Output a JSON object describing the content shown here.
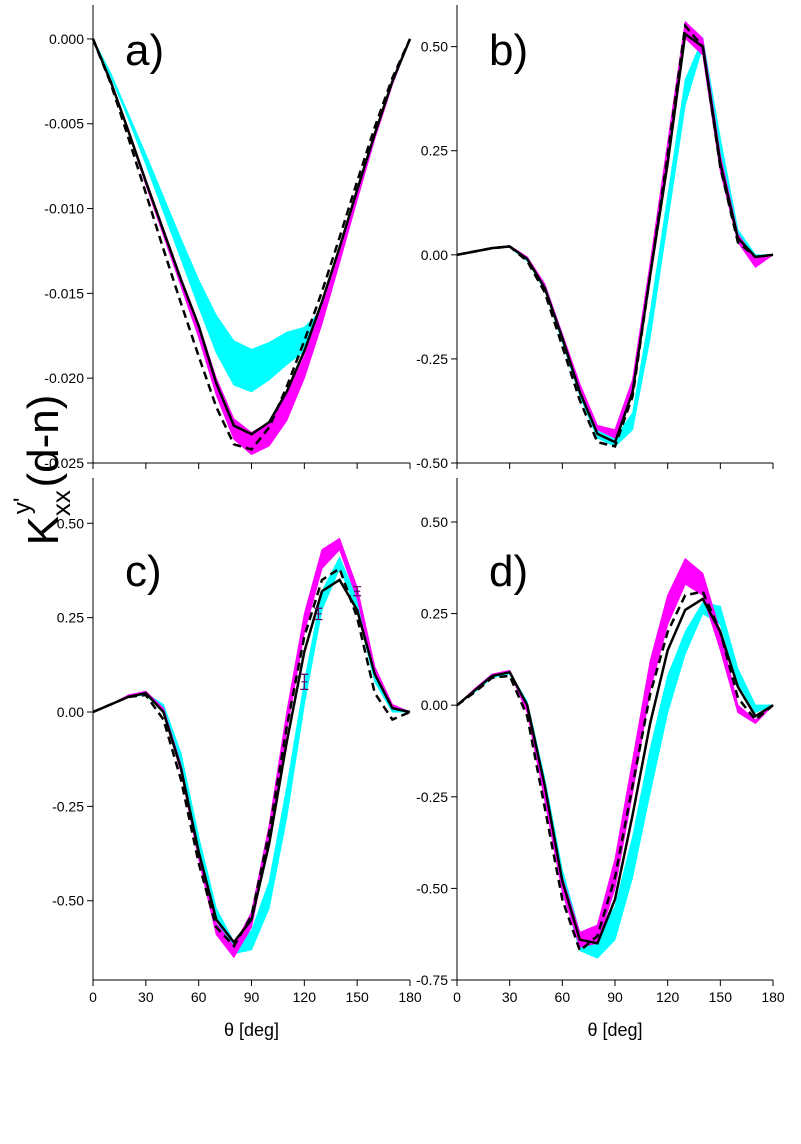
{
  "ylabel": {
    "main": "K",
    "sub": "xx",
    "sup": "y'",
    "unit": "(d-n)"
  },
  "chart_data": [
    {
      "type": "line",
      "label": "a)",
      "xlim": [
        0,
        180
      ],
      "ylim": [
        -0.025,
        0.002
      ],
      "xtick_labels": false,
      "xticks": [
        0,
        30,
        60,
        90,
        120,
        150,
        180
      ],
      "yticks": [
        {
          "value": 0,
          "label": "0.000"
        },
        {
          "value": -0.005,
          "label": "-0.005"
        },
        {
          "value": -0.01,
          "label": "-0.010"
        },
        {
          "value": -0.015,
          "label": "-0.015"
        },
        {
          "value": -0.02,
          "label": "-0.020"
        },
        {
          "value": -0.025,
          "label": "-0.025"
        }
      ],
      "x": [
        0,
        10,
        20,
        30,
        40,
        50,
        60,
        70,
        80,
        90,
        100,
        110,
        120,
        130,
        140,
        150,
        160,
        170,
        180
      ],
      "series": [
        {
          "kind": "band",
          "color": "#00ffff",
          "upper": [
            0,
            -0.002,
            -0.0044,
            -0.0068,
            -0.0093,
            -0.0118,
            -0.0142,
            -0.0163,
            -0.0178,
            -0.0183,
            -0.0179,
            -0.0173,
            -0.017,
            -0.016,
            -0.0124,
            -0.0089,
            -0.0056,
            -0.0025,
            0
          ],
          "lower": [
            0,
            -0.0022,
            -0.0047,
            -0.0074,
            -0.0102,
            -0.013,
            -0.0158,
            -0.0185,
            -0.0204,
            -0.0208,
            -0.0201,
            -0.0192,
            -0.0184,
            -0.0167,
            -0.0128,
            -0.0092,
            -0.0058,
            -0.0026,
            0
          ]
        },
        {
          "kind": "band",
          "color": "#ff00ff",
          "upper": [
            0,
            -0.0024,
            -0.0053,
            -0.0083,
            -0.0112,
            -0.0141,
            -0.0168,
            -0.02,
            -0.0224,
            -0.0232,
            -0.0226,
            -0.021,
            -0.0187,
            -0.0158,
            -0.0125,
            -0.009,
            -0.0056,
            -0.0025,
            0
          ],
          "lower": [
            0,
            -0.0025,
            -0.0055,
            -0.0086,
            -0.0116,
            -0.0146,
            -0.0176,
            -0.021,
            -0.0236,
            -0.0245,
            -0.024,
            -0.0225,
            -0.02,
            -0.0168,
            -0.0132,
            -0.0095,
            -0.0059,
            -0.0027,
            0
          ]
        },
        {
          "kind": "line",
          "color": "#000000",
          "dash": false,
          "values": [
            0,
            -0.0025,
            -0.0054,
            -0.0084,
            -0.0113,
            -0.0142,
            -0.0169,
            -0.0203,
            -0.0228,
            -0.0233,
            -0.0226,
            -0.0208,
            -0.0184,
            -0.0155,
            -0.0123,
            -0.0089,
            -0.0056,
            -0.0025,
            0
          ]
        },
        {
          "kind": "line",
          "color": "#000000",
          "dash": true,
          "values": [
            0,
            -0.0026,
            -0.0058,
            -0.0091,
            -0.0124,
            -0.0156,
            -0.0187,
            -0.0217,
            -0.0239,
            -0.0242,
            -0.0229,
            -0.0205,
            -0.0178,
            -0.0149,
            -0.0117,
            -0.0084,
            -0.0052,
            -0.0023,
            0
          ]
        }
      ]
    },
    {
      "type": "line",
      "label": "b)",
      "xlim": [
        0,
        180
      ],
      "ylim": [
        -0.5,
        0.6
      ],
      "xtick_labels": false,
      "xticks": [
        0,
        30,
        60,
        90,
        120,
        150,
        180
      ],
      "yticks": [
        {
          "value": 0.5,
          "label": "0.50"
        },
        {
          "value": 0.25,
          "label": "0.25"
        },
        {
          "value": 0,
          "label": "0.00"
        },
        {
          "value": -0.25,
          "label": "-0.25"
        },
        {
          "value": -0.5,
          "label": "-0.50"
        }
      ],
      "x": [
        0,
        10,
        20,
        30,
        40,
        50,
        60,
        70,
        80,
        90,
        100,
        110,
        120,
        130,
        140,
        150,
        160,
        170,
        180
      ],
      "series": [
        {
          "kind": "band",
          "color": "#00ffff",
          "upper": [
            0,
            0.008,
            0.016,
            0.02,
            -0.01,
            -0.07,
            -0.19,
            -0.32,
            -0.42,
            -0.44,
            -0.38,
            -0.14,
            0.14,
            0.42,
            0.52,
            0.28,
            0.06,
            0,
            0
          ],
          "lower": [
            0,
            0.007,
            0.015,
            0.018,
            -0.015,
            -0.085,
            -0.21,
            -0.34,
            -0.44,
            -0.46,
            -0.42,
            -0.2,
            0.08,
            0.36,
            0.5,
            0.25,
            0.05,
            -0.005,
            0
          ]
        },
        {
          "kind": "band",
          "color": "#ff00ff",
          "upper": [
            0,
            0.009,
            0.018,
            0.022,
            -0.005,
            -0.07,
            -0.19,
            -0.31,
            -0.41,
            -0.42,
            -0.3,
            -0.02,
            0.27,
            0.56,
            0.52,
            0.24,
            0.05,
            -0.01,
            0
          ],
          "lower": [
            0,
            0.008,
            0.016,
            0.019,
            -0.01,
            -0.08,
            -0.2,
            -0.32,
            -0.42,
            -0.44,
            -0.33,
            -0.06,
            0.23,
            0.52,
            0.48,
            0.2,
            0.03,
            -0.03,
            0
          ]
        },
        {
          "kind": "line",
          "color": "#000000",
          "dash": false,
          "values": [
            0,
            0.008,
            0.016,
            0.02,
            -0.01,
            -0.08,
            -0.2,
            -0.33,
            -0.43,
            -0.45,
            -0.33,
            -0.05,
            0.22,
            0.53,
            0.5,
            0.22,
            0.04,
            -0.005,
            0
          ]
        },
        {
          "kind": "line",
          "color": "#000000",
          "dash": true,
          "values": [
            0,
            0.008,
            0.016,
            0.02,
            -0.015,
            -0.09,
            -0.22,
            -0.35,
            -0.45,
            -0.46,
            -0.34,
            -0.05,
            0.24,
            0.55,
            0.5,
            0.21,
            0.03,
            -0.005,
            0
          ]
        }
      ]
    },
    {
      "type": "line",
      "label": "c)",
      "xlim": [
        0,
        180
      ],
      "ylim": [
        -0.71,
        0.62
      ],
      "xtick_labels": true,
      "xlabel": "θ [deg]",
      "xticks": [
        0,
        30,
        60,
        90,
        120,
        150,
        180
      ],
      "yticks": [
        {
          "value": 0.5,
          "label": "0.50"
        },
        {
          "value": 0.25,
          "label": "0.25"
        },
        {
          "value": 0,
          "label": "0.00"
        },
        {
          "value": -0.25,
          "label": "-0.25"
        },
        {
          "value": -0.5,
          "label": "-0.50"
        }
      ],
      "x": [
        0,
        10,
        20,
        30,
        40,
        50,
        60,
        70,
        80,
        90,
        100,
        110,
        120,
        130,
        140,
        150,
        160,
        170,
        180
      ],
      "series": [
        {
          "kind": "band",
          "color": "#00ffff",
          "upper": [
            0,
            0.02,
            0.04,
            0.05,
            0.02,
            -0.11,
            -0.33,
            -0.52,
            -0.61,
            -0.58,
            -0.45,
            -0.2,
            0.08,
            0.32,
            0.41,
            0.3,
            0.1,
            0.01,
            0
          ],
          "lower": [
            0,
            0.02,
            0.04,
            0.045,
            0,
            -0.14,
            -0.36,
            -0.55,
            -0.64,
            -0.63,
            -0.52,
            -0.28,
            0.02,
            0.27,
            0.38,
            0.27,
            0.08,
            0,
            0
          ]
        },
        {
          "kind": "band",
          "color": "#ff00ff",
          "upper": [
            0,
            0.02,
            0.045,
            0.055,
            0.01,
            -0.14,
            -0.37,
            -0.56,
            -0.62,
            -0.53,
            -0.3,
            0,
            0.26,
            0.43,
            0.46,
            0.33,
            0.12,
            0.02,
            0
          ],
          "lower": [
            0,
            0.02,
            0.04,
            0.05,
            0,
            -0.16,
            -0.39,
            -0.59,
            -0.65,
            -0.57,
            -0.34,
            -0.05,
            0.21,
            0.38,
            0.43,
            0.3,
            0.1,
            0.01,
            0
          ]
        },
        {
          "kind": "line",
          "color": "#000000",
          "dash": false,
          "values": [
            0,
            0.02,
            0.04,
            0.05,
            0,
            -0.15,
            -0.37,
            -0.55,
            -0.61,
            -0.55,
            -0.35,
            -0.08,
            0.16,
            0.32,
            0.35,
            0.27,
            0.1,
            0.01,
            0
          ]
        },
        {
          "kind": "line",
          "color": "#000000",
          "dash": true,
          "values": [
            0,
            0.02,
            0.04,
            0.045,
            -0.02,
            -0.18,
            -0.4,
            -0.57,
            -0.62,
            -0.54,
            -0.32,
            -0.04,
            0.2,
            0.35,
            0.38,
            0.25,
            0.05,
            -0.02,
            0
          ]
        }
      ],
      "points": {
        "color": "#660066",
        "x": [
          120,
          128,
          150
        ],
        "values": [
          0.08,
          0.26,
          0.32
        ],
        "errors": [
          0.02,
          0.015,
          0.012
        ]
      }
    },
    {
      "type": "line",
      "label": "d)",
      "xlim": [
        0,
        180
      ],
      "ylim": [
        -0.75,
        0.62
      ],
      "xtick_labels": true,
      "xlabel": "θ [deg]",
      "xticks": [
        0,
        30,
        60,
        90,
        120,
        150,
        180
      ],
      "yticks": [
        {
          "value": 0.5,
          "label": "0.50"
        },
        {
          "value": 0.25,
          "label": "0.25"
        },
        {
          "value": 0,
          "label": "0.00"
        },
        {
          "value": -0.25,
          "label": "-0.25"
        },
        {
          "value": -0.5,
          "label": "-0.50"
        },
        {
          "value": -0.75,
          "label": "-0.75"
        }
      ],
      "x": [
        0,
        10,
        20,
        30,
        40,
        50,
        60,
        70,
        80,
        90,
        100,
        110,
        120,
        130,
        140,
        150,
        160,
        170,
        180
      ],
      "series": [
        {
          "kind": "band",
          "color": "#00ffff",
          "upper": [
            0,
            0.04,
            0.08,
            0.09,
            0.01,
            -0.2,
            -0.45,
            -0.62,
            -0.63,
            -0.55,
            -0.36,
            -0.12,
            0.08,
            0.2,
            0.28,
            0.27,
            0.1,
            0,
            0
          ],
          "lower": [
            0,
            0.035,
            0.075,
            0.085,
            -0.01,
            -0.24,
            -0.5,
            -0.67,
            -0.69,
            -0.64,
            -0.47,
            -0.24,
            -0.02,
            0.14,
            0.25,
            0.22,
            0.06,
            -0.02,
            0
          ]
        },
        {
          "kind": "band",
          "color": "#ff00ff",
          "upper": [
            0,
            0.045,
            0.085,
            0.095,
            0,
            -0.22,
            -0.47,
            -0.62,
            -0.6,
            -0.42,
            -0.15,
            0.12,
            0.3,
            0.4,
            0.36,
            0.2,
            0,
            -0.04,
            0
          ],
          "lower": [
            0,
            0.04,
            0.08,
            0.09,
            -0.02,
            -0.26,
            -0.51,
            -0.66,
            -0.65,
            -0.5,
            -0.24,
            0.04,
            0.22,
            0.33,
            0.3,
            0.15,
            -0.02,
            -0.05,
            0
          ]
        },
        {
          "kind": "line",
          "color": "#000000",
          "dash": false,
          "values": [
            0,
            0.04,
            0.08,
            0.09,
            0,
            -0.22,
            -0.48,
            -0.64,
            -0.65,
            -0.53,
            -0.3,
            -0.05,
            0.15,
            0.26,
            0.29,
            0.2,
            0.05,
            -0.03,
            0
          ]
        },
        {
          "kind": "line",
          "color": "#000000",
          "dash": true,
          "values": [
            0,
            0.035,
            0.075,
            0.08,
            -0.03,
            -0.28,
            -0.53,
            -0.67,
            -0.63,
            -0.47,
            -0.22,
            0.03,
            0.2,
            0.3,
            0.31,
            0.2,
            0.02,
            -0.04,
            0
          ]
        }
      ]
    }
  ]
}
